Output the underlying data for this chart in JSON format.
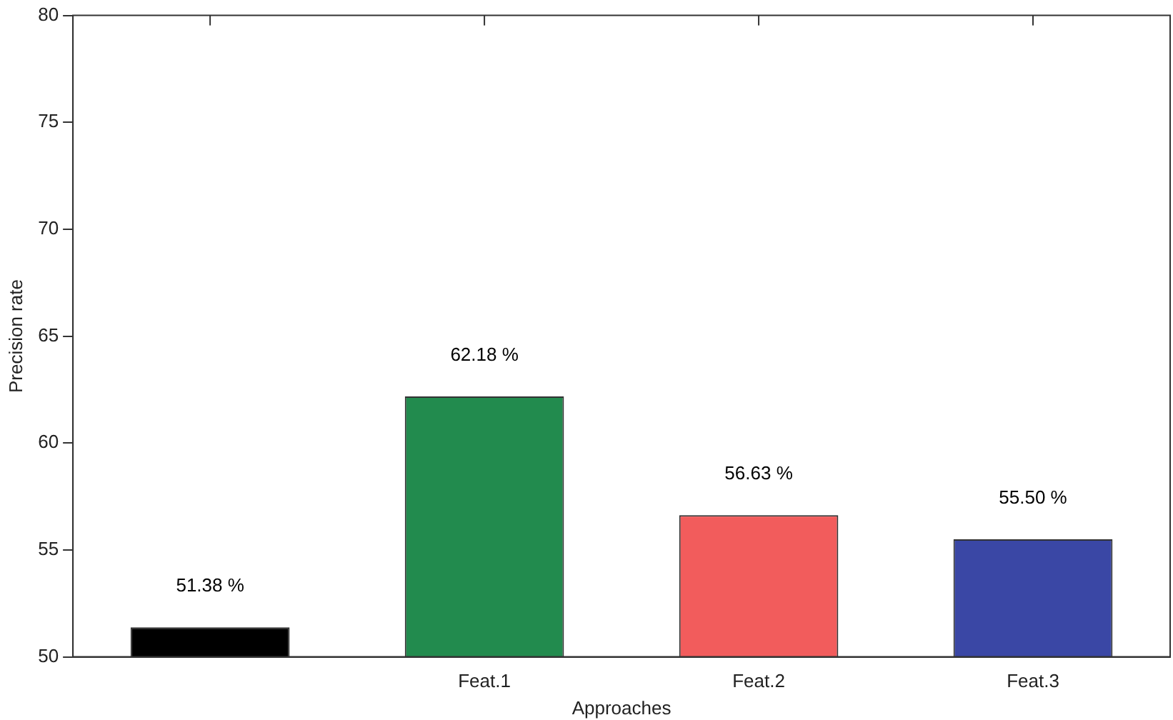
{
  "chart_data": {
    "type": "bar",
    "xlabel": "Approaches",
    "ylabel": "Precision rate",
    "categories": [
      null,
      "Feat.1",
      "Feat.2",
      "Feat.3"
    ],
    "values": [
      51.38,
      62.18,
      56.63,
      55.5
    ],
    "colors": [
      "#000000",
      "#228b4e",
      "#f25c5c",
      "#3a47a5"
    ],
    "value_labels": [
      "51.38 %",
      "62.18 %",
      "56.63 %",
      "55.50 %"
    ],
    "ylim": [
      50,
      80
    ],
    "yticks": [
      50,
      55,
      60,
      65,
      70,
      75,
      80
    ],
    "grid": false
  }
}
